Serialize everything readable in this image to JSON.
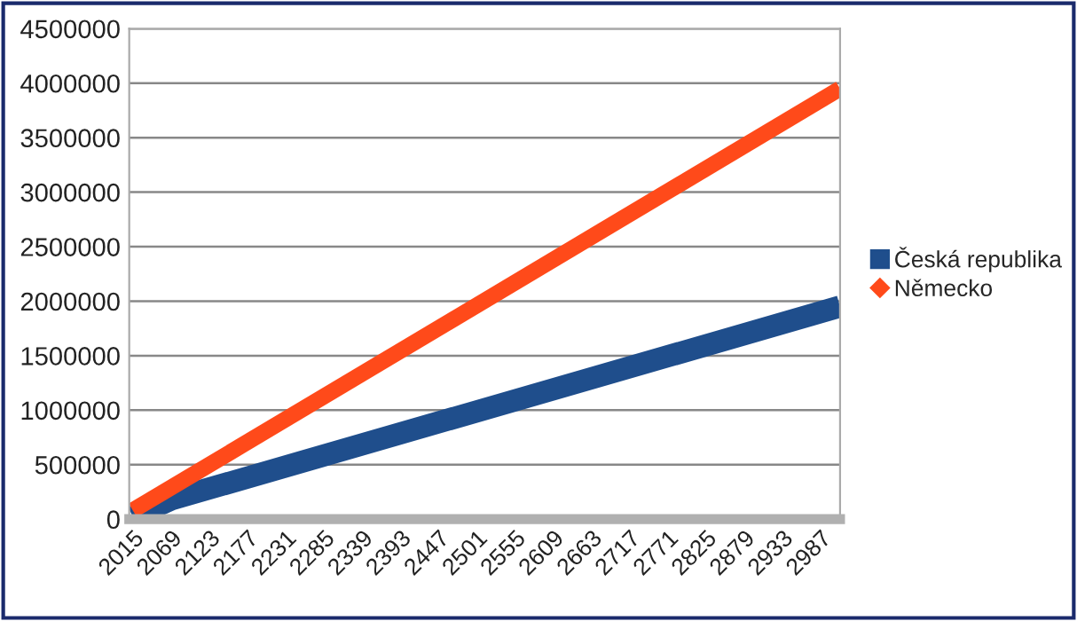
{
  "chart_data": {
    "type": "line",
    "xlim": [
      2010,
      3015
    ],
    "xticks": [
      2015,
      2069,
      2123,
      2177,
      2231,
      2285,
      2339,
      2393,
      2447,
      2501,
      2555,
      2609,
      2663,
      2717,
      2771,
      2825,
      2879,
      2933,
      2987
    ],
    "ylim": [
      0,
      4500000
    ],
    "yticks": [
      0,
      500000,
      1000000,
      1500000,
      2000000,
      2500000,
      3000000,
      3500000,
      4000000,
      4500000
    ],
    "grid": "y",
    "legend": "right",
    "series": [
      {
        "name": "Česká republika",
        "color": "#1f4e8c",
        "x": [
          2015,
          2069,
          3015
        ],
        "values": [
          20000,
          180000,
          1950000
        ]
      },
      {
        "name": "Německo",
        "color": "#ff4a1a",
        "x": [
          2015,
          3015
        ],
        "values": [
          80000,
          3950000
        ]
      }
    ]
  }
}
